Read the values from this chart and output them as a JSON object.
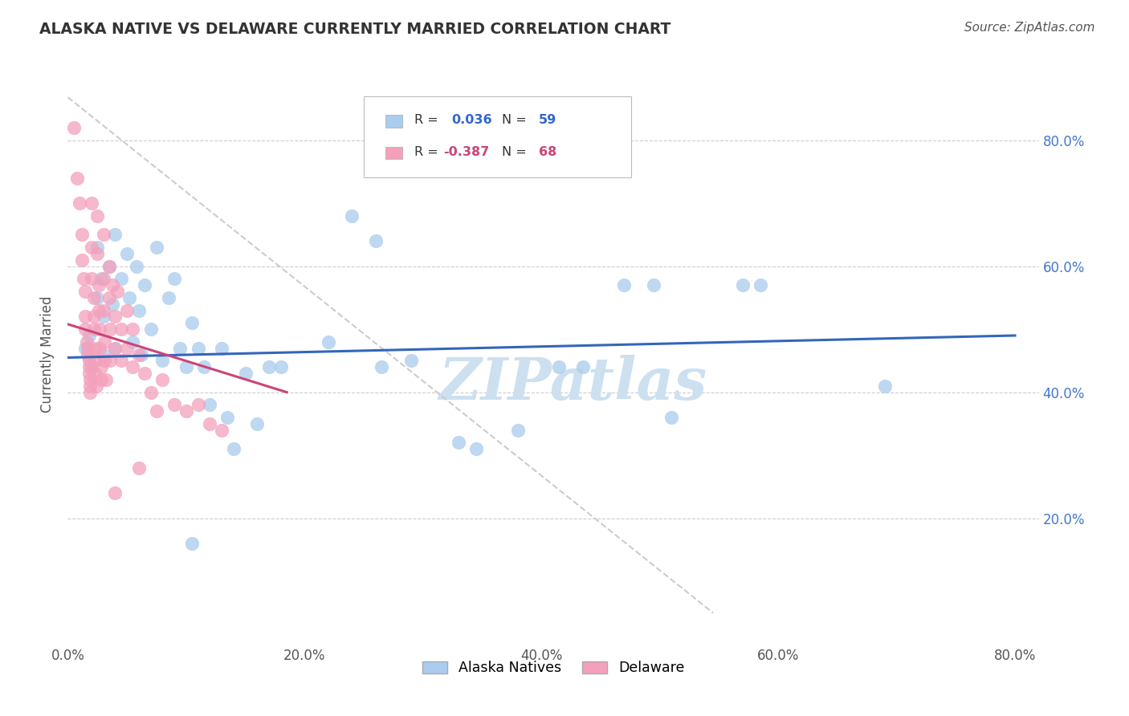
{
  "title": "ALASKA NATIVE VS DELAWARE CURRENTLY MARRIED CORRELATION CHART",
  "source_text": "Source: ZipAtlas.com",
  "ylabel": "Currently Married",
  "xlim": [
    0.0,
    0.82
  ],
  "ylim": [
    0.0,
    0.92
  ],
  "xtick_labels": [
    "0.0%",
    "",
    "20.0%",
    "",
    "40.0%",
    "",
    "60.0%",
    "",
    "80.0%"
  ],
  "xtick_values": [
    0.0,
    0.1,
    0.2,
    0.3,
    0.4,
    0.5,
    0.6,
    0.7,
    0.8
  ],
  "ytick_labels": [
    "80.0%",
    "60.0%",
    "40.0%",
    "20.0%"
  ],
  "ytick_values": [
    0.8,
    0.6,
    0.4,
    0.2
  ],
  "blue_color": "#aaccee",
  "pink_color": "#f4a0bb",
  "blue_line_color": "#3366bb",
  "pink_line_color": "#cc4477",
  "diagonal_line_color": "#cccccc",
  "watermark_text": "ZIPatlas",
  "watermark_color": "#cce0f0",
  "title_color": "#333333",
  "axis_label_color": "#555555",
  "tick_color_blue": "#4477cc",
  "source_color": "#555555",
  "blue_scatter": [
    [
      0.015,
      0.47
    ],
    [
      0.018,
      0.49
    ],
    [
      0.02,
      0.44
    ],
    [
      0.025,
      0.55
    ],
    [
      0.025,
      0.63
    ],
    [
      0.028,
      0.58
    ],
    [
      0.03,
      0.52
    ],
    [
      0.03,
      0.46
    ],
    [
      0.035,
      0.6
    ],
    [
      0.038,
      0.54
    ],
    [
      0.04,
      0.65
    ],
    [
      0.04,
      0.47
    ],
    [
      0.045,
      0.58
    ],
    [
      0.05,
      0.62
    ],
    [
      0.052,
      0.55
    ],
    [
      0.055,
      0.48
    ],
    [
      0.058,
      0.6
    ],
    [
      0.06,
      0.53
    ],
    [
      0.062,
      0.46
    ],
    [
      0.065,
      0.57
    ],
    [
      0.07,
      0.5
    ],
    [
      0.075,
      0.63
    ],
    [
      0.08,
      0.45
    ],
    [
      0.085,
      0.55
    ],
    [
      0.09,
      0.58
    ],
    [
      0.095,
      0.47
    ],
    [
      0.1,
      0.44
    ],
    [
      0.105,
      0.51
    ],
    [
      0.11,
      0.47
    ],
    [
      0.115,
      0.44
    ],
    [
      0.12,
      0.38
    ],
    [
      0.13,
      0.47
    ],
    [
      0.135,
      0.36
    ],
    [
      0.14,
      0.31
    ],
    [
      0.15,
      0.43
    ],
    [
      0.16,
      0.35
    ],
    [
      0.17,
      0.44
    ],
    [
      0.18,
      0.44
    ],
    [
      0.22,
      0.48
    ],
    [
      0.24,
      0.68
    ],
    [
      0.26,
      0.64
    ],
    [
      0.265,
      0.44
    ],
    [
      0.29,
      0.45
    ],
    [
      0.33,
      0.32
    ],
    [
      0.345,
      0.31
    ],
    [
      0.38,
      0.34
    ],
    [
      0.415,
      0.44
    ],
    [
      0.435,
      0.44
    ],
    [
      0.47,
      0.57
    ],
    [
      0.495,
      0.57
    ],
    [
      0.51,
      0.36
    ],
    [
      0.57,
      0.57
    ],
    [
      0.585,
      0.57
    ],
    [
      0.105,
      0.16
    ],
    [
      0.69,
      0.41
    ]
  ],
  "pink_scatter": [
    [
      0.005,
      0.82
    ],
    [
      0.008,
      0.74
    ],
    [
      0.01,
      0.7
    ],
    [
      0.012,
      0.65
    ],
    [
      0.012,
      0.61
    ],
    [
      0.013,
      0.58
    ],
    [
      0.015,
      0.56
    ],
    [
      0.015,
      0.52
    ],
    [
      0.015,
      0.5
    ],
    [
      0.016,
      0.48
    ],
    [
      0.017,
      0.47
    ],
    [
      0.017,
      0.46
    ],
    [
      0.018,
      0.45
    ],
    [
      0.018,
      0.44
    ],
    [
      0.018,
      0.43
    ],
    [
      0.019,
      0.42
    ],
    [
      0.019,
      0.41
    ],
    [
      0.019,
      0.4
    ],
    [
      0.02,
      0.7
    ],
    [
      0.02,
      0.63
    ],
    [
      0.02,
      0.58
    ],
    [
      0.022,
      0.55
    ],
    [
      0.022,
      0.52
    ],
    [
      0.022,
      0.5
    ],
    [
      0.023,
      0.47
    ],
    [
      0.023,
      0.45
    ],
    [
      0.023,
      0.43
    ],
    [
      0.024,
      0.41
    ],
    [
      0.025,
      0.68
    ],
    [
      0.025,
      0.62
    ],
    [
      0.026,
      0.57
    ],
    [
      0.026,
      0.53
    ],
    [
      0.027,
      0.5
    ],
    [
      0.027,
      0.47
    ],
    [
      0.028,
      0.44
    ],
    [
      0.028,
      0.42
    ],
    [
      0.03,
      0.65
    ],
    [
      0.03,
      0.58
    ],
    [
      0.03,
      0.53
    ],
    [
      0.031,
      0.48
    ],
    [
      0.031,
      0.45
    ],
    [
      0.032,
      0.42
    ],
    [
      0.035,
      0.6
    ],
    [
      0.035,
      0.55
    ],
    [
      0.036,
      0.5
    ],
    [
      0.036,
      0.45
    ],
    [
      0.038,
      0.57
    ],
    [
      0.04,
      0.52
    ],
    [
      0.04,
      0.47
    ],
    [
      0.042,
      0.56
    ],
    [
      0.045,
      0.5
    ],
    [
      0.045,
      0.45
    ],
    [
      0.05,
      0.53
    ],
    [
      0.05,
      0.47
    ],
    [
      0.055,
      0.5
    ],
    [
      0.055,
      0.44
    ],
    [
      0.06,
      0.46
    ],
    [
      0.065,
      0.43
    ],
    [
      0.07,
      0.4
    ],
    [
      0.075,
      0.37
    ],
    [
      0.08,
      0.42
    ],
    [
      0.09,
      0.38
    ],
    [
      0.1,
      0.37
    ],
    [
      0.11,
      0.38
    ],
    [
      0.12,
      0.35
    ],
    [
      0.13,
      0.34
    ],
    [
      0.04,
      0.24
    ],
    [
      0.06,
      0.28
    ]
  ],
  "blue_trend_x": [
    0.0,
    0.8
  ],
  "blue_trend_y": [
    0.455,
    0.49
  ],
  "pink_trend_x": [
    0.0,
    0.185
  ],
  "pink_trend_y": [
    0.508,
    0.4
  ],
  "diag_trend_x": [
    0.0,
    0.545
  ],
  "diag_trend_y": [
    0.868,
    0.05
  ]
}
